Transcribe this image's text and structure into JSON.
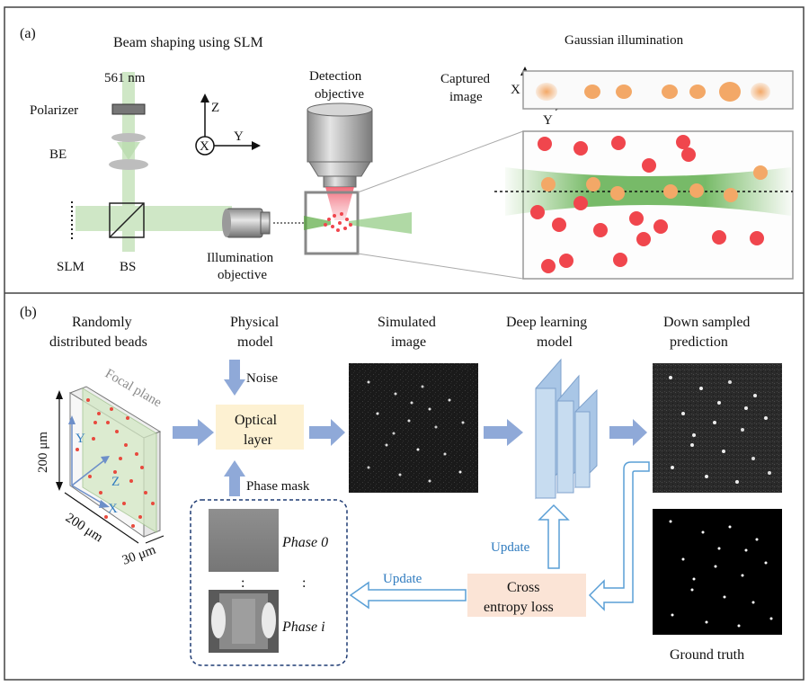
{
  "panel_a": {
    "tag": "(a)",
    "title_left": "Beam shaping using SLM",
    "title_right": "Gaussian illumination",
    "wavelength": "561 nm",
    "polarizer": "Polarizer",
    "be": "BE",
    "slm": "SLM",
    "bs": "BS",
    "axis_z": "Z",
    "axis_y": "Y",
    "axis_x": "X",
    "detection_line1": "Detection",
    "detection_line2": "objective",
    "illumination_line1": "Illumination",
    "illumination_line2": "objective",
    "captured_line1": "Captured",
    "captured_line2": "image",
    "cap_axis_x": "X",
    "cap_axis_y": "Y"
  },
  "panel_b": {
    "tag": "(b)",
    "col1_line1": "Randomly",
    "col1_line2": "distributed beads",
    "col2_line1": "Physical",
    "col2_line2": "model",
    "col3_line1": "Simulated",
    "col3_line2": "image",
    "col4_line1": "Deep learning",
    "col4_line2": "model",
    "col5_line1": "Down sampled",
    "col5_line2": "prediction",
    "focal_plane": "Focal plane",
    "dim_200_vert": "200 μm",
    "dim_200_horiz": "200 μm",
    "dim_30": "30 μm",
    "cube_y": "Y",
    "cube_z": "Z",
    "cube_x": "X",
    "noise": "Noise",
    "optical_line1": "Optical",
    "optical_line2": "layer",
    "phase_mask": "Phase mask",
    "phase0": "Phase 0",
    "phasei": "Phase i",
    "update_left": "Update",
    "update_up": "Update",
    "loss_line1": "Cross",
    "loss_line2": "entropy loss",
    "ground_truth": "Ground truth",
    "dots_v": ":",
    "dots_v2": ":"
  },
  "colors": {
    "arrow": "#8fa9d8",
    "optical_box": "#fdf1d2",
    "loss_box": "#fbe4d6",
    "bead": "#f0464d",
    "beam": "#c8e2bf",
    "update_blue": "#2f7bbf"
  }
}
